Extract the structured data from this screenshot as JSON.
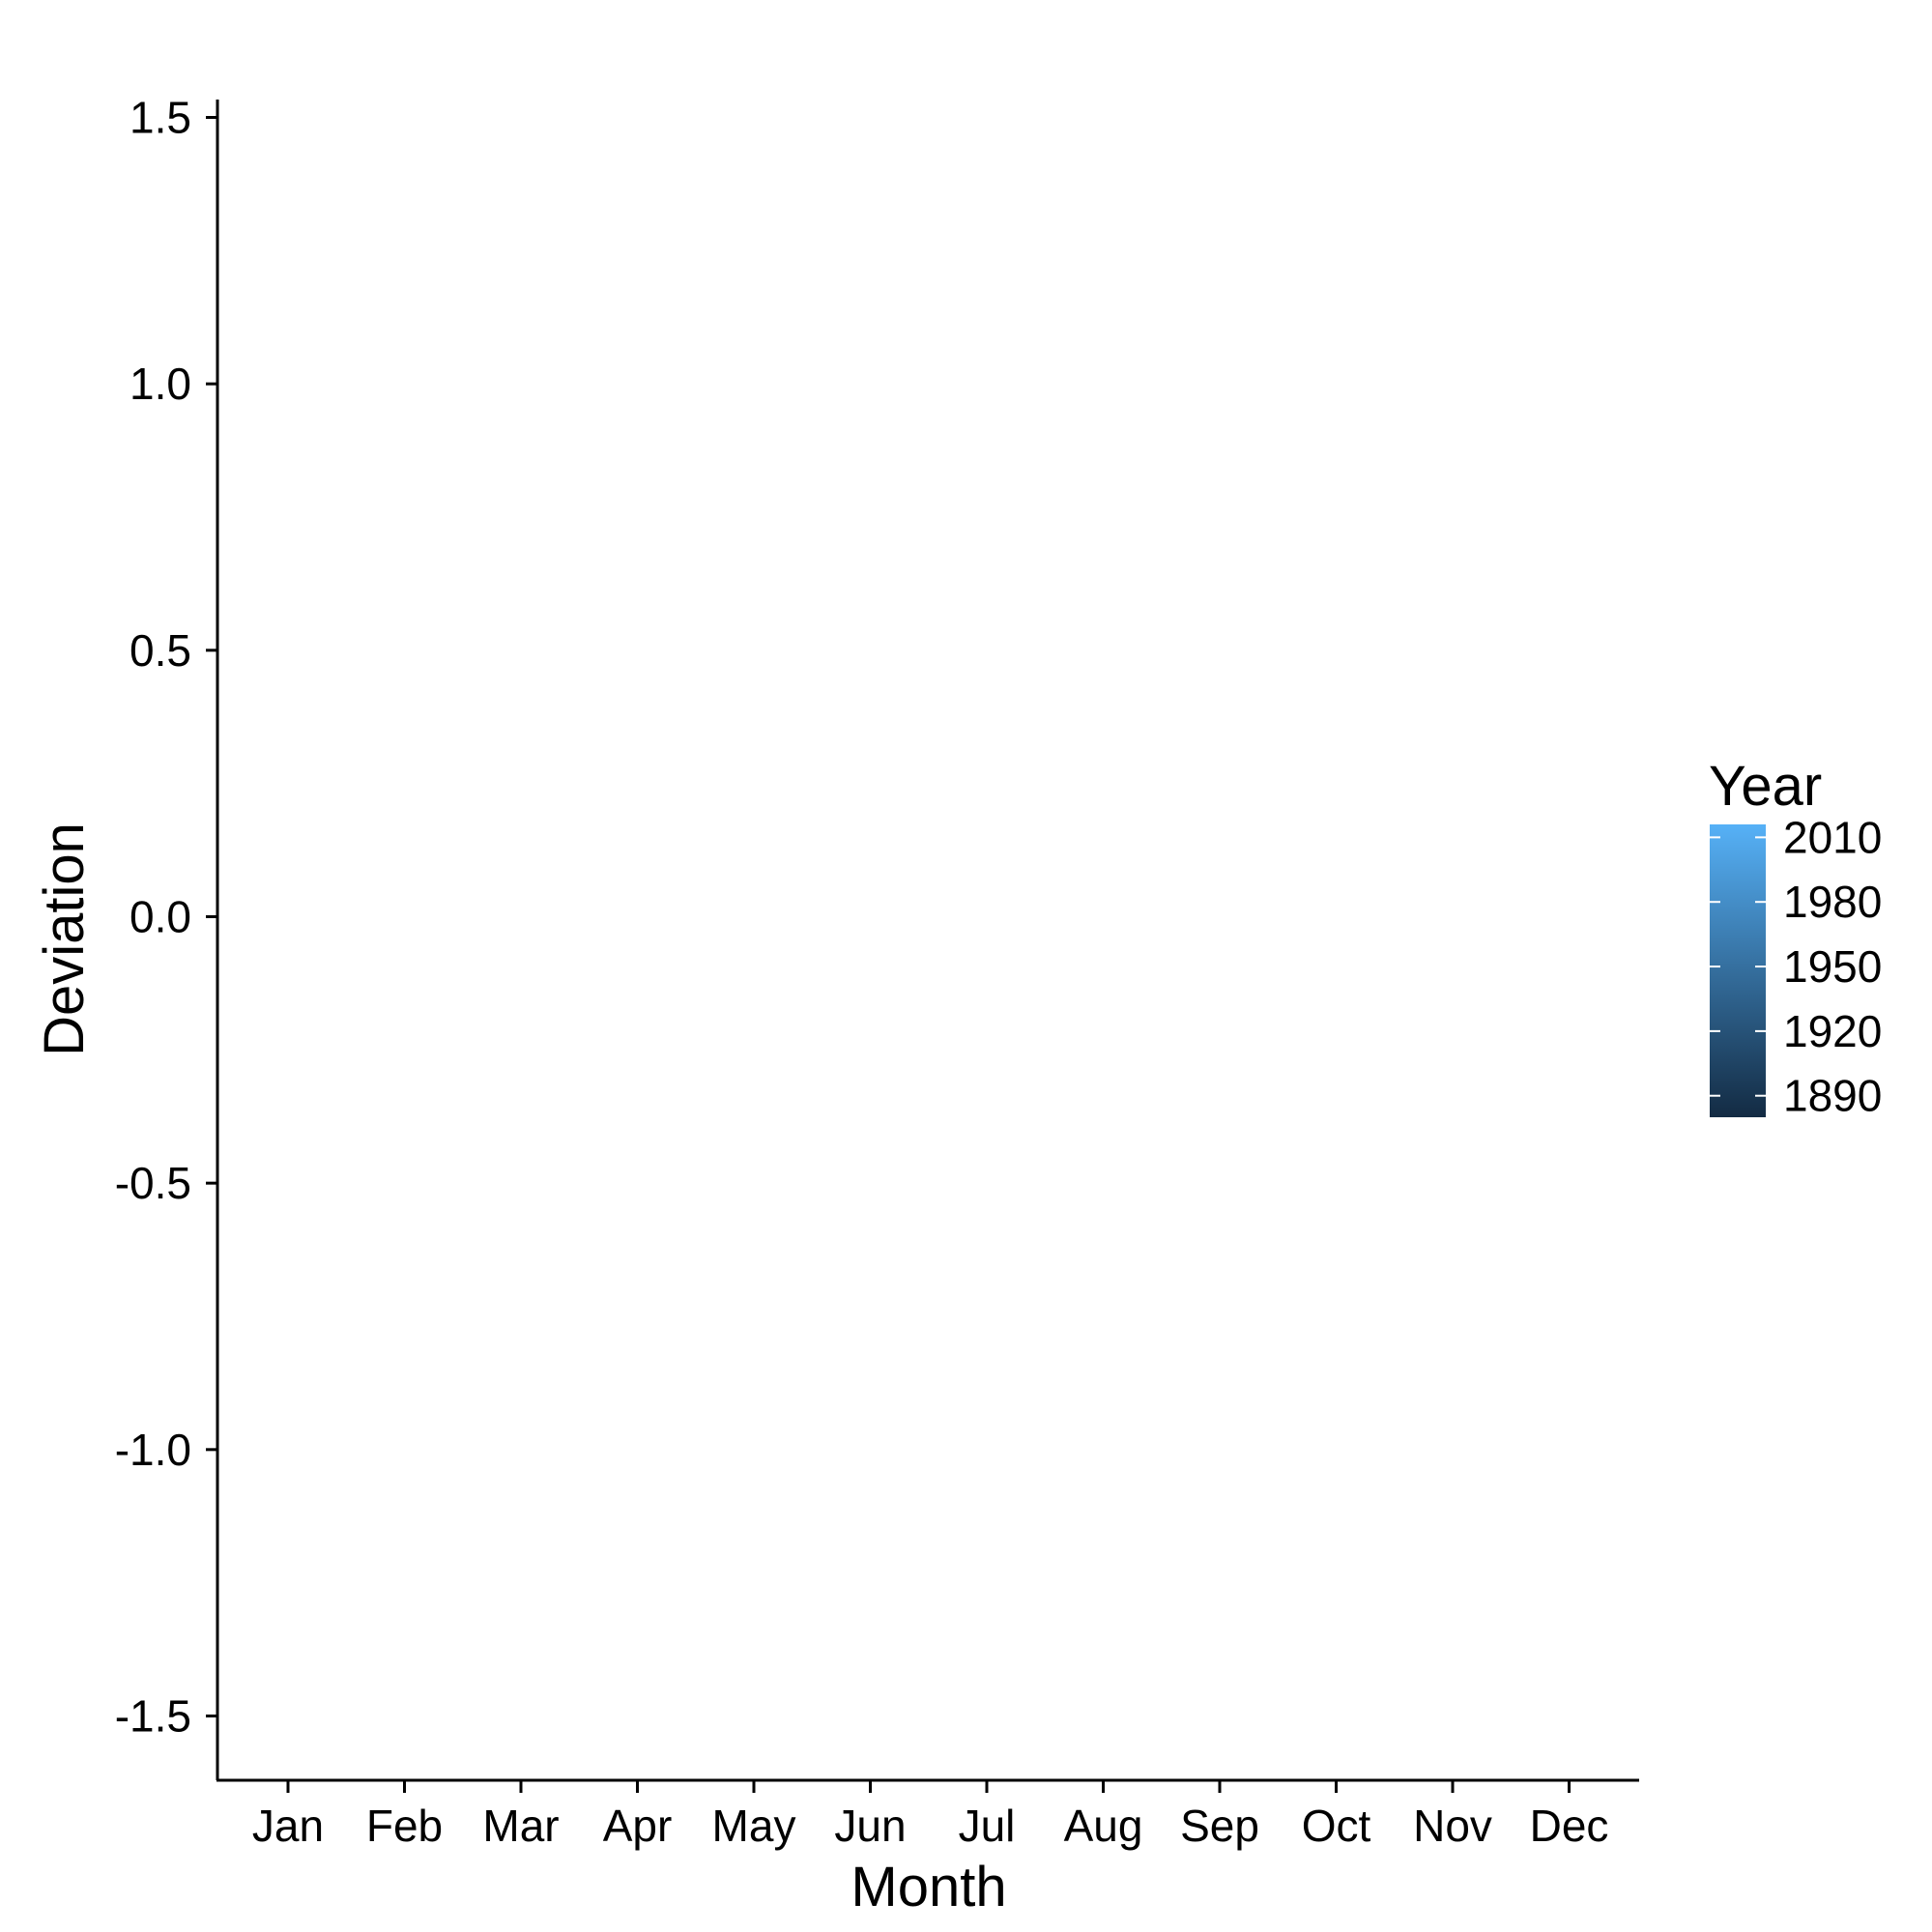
{
  "chart_data": {
    "type": "line",
    "title": "",
    "xlabel": "Month",
    "ylabel": "Deviation",
    "categories": [
      "Jan",
      "Feb",
      "Mar",
      "Apr",
      "May",
      "Jun",
      "Jul",
      "Aug",
      "Sep",
      "Oct",
      "Nov",
      "Dec"
    ],
    "ylim": [
      -1.6,
      1.56
    ],
    "yticks": [
      -1.5,
      -1.0,
      -0.5,
      0.0,
      0.5,
      1.0,
      1.5
    ],
    "ytick_labels": [
      "-1.5",
      "-1.0",
      "-0.5",
      "0.0",
      "0.5",
      "1.0",
      "1.5"
    ],
    "series": [],
    "grid": false,
    "legend": {
      "title": "Year",
      "placement": "right",
      "type": "colorbar",
      "range": [
        1880,
        2016
      ],
      "breaks": [
        1890,
        1920,
        1950,
        1980,
        2010
      ],
      "break_labels": [
        "2010",
        "1980",
        "1950",
        "1920",
        "1890"
      ],
      "color_low": "#132B43",
      "color_high": "#56B1F7"
    }
  }
}
